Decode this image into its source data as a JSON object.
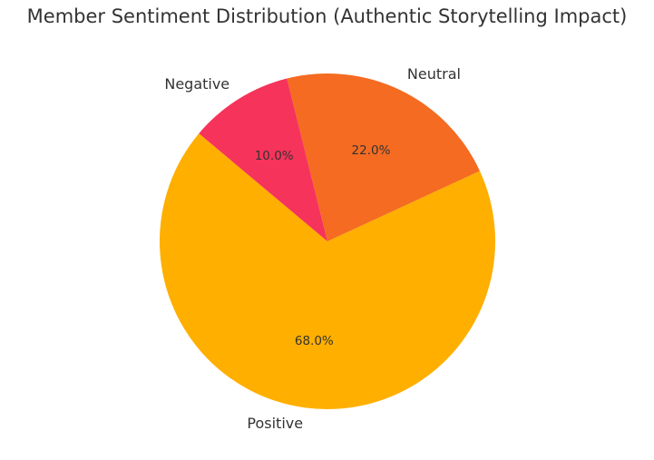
{
  "chart_data": {
    "type": "pie",
    "title": "Member Sentiment Distribution (Authentic Storytelling Impact)",
    "categories": [
      "Positive",
      "Neutral",
      "Negative"
    ],
    "values": [
      68.0,
      22.0,
      10.0
    ],
    "labels": [
      "68.0%",
      "22.0%",
      "10.0%"
    ],
    "colors": [
      "#FFAF00",
      "#F46B21",
      "#F6335A"
    ],
    "start_angle": 140,
    "autopct": "%1.1f%%",
    "legend": false
  }
}
